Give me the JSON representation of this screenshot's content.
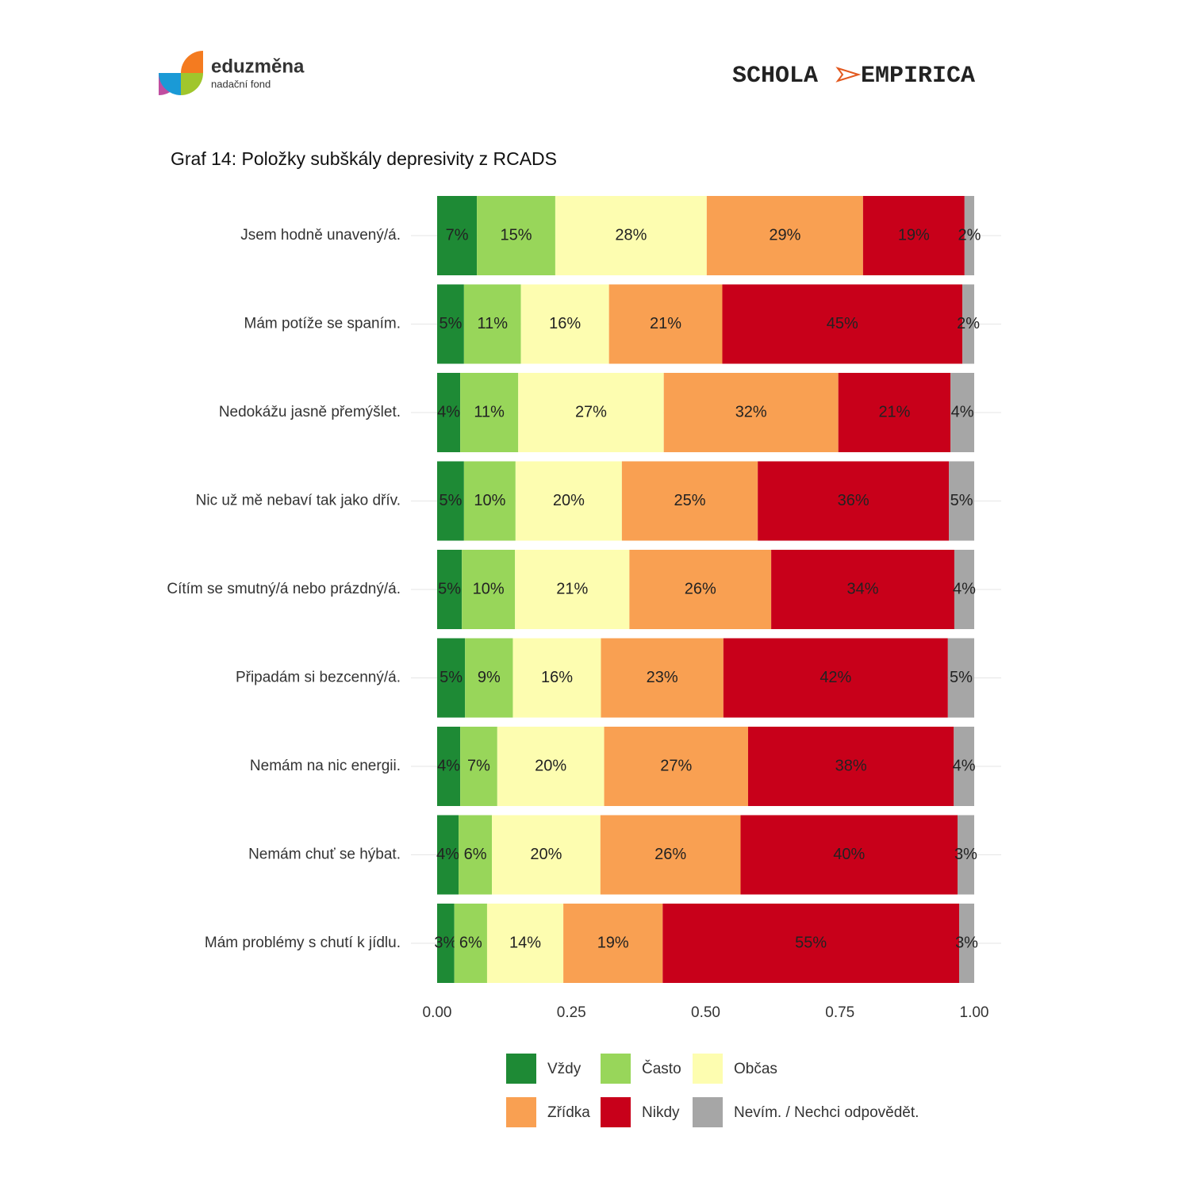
{
  "logos": {
    "left_name": "eduzměna",
    "left_sub": "nadační fond",
    "right_a": "SCHOLA",
    "right_b": "EMPIRICA"
  },
  "chart_data": {
    "type": "stacked_barh",
    "title": "Graf 14: Položky subškály depresivity z RCADS",
    "categories": [
      "Jsem hodně unavený/á.",
      "Mám potíže se spaním.",
      "Nedokážu jasně přemýšlet.",
      "Nic už mě nebaví tak jako dřív.",
      "Cítím se smutný/á nebo prázdný/á.",
      "Připadám si bezcenný/á.",
      "Nemám na nic energii.",
      "Nemám chuť se hýbat.",
      "Mám problémy s chutí k jídlu."
    ],
    "series": [
      {
        "name": "Vždy",
        "color": "#1e8a35",
        "values": [
          0.074,
          0.05,
          0.043,
          0.05,
          0.046,
          0.052,
          0.043,
          0.04,
          0.032
        ],
        "value_labels": [
          "7%",
          "5%",
          "4%",
          "5%",
          "5%",
          "5%",
          "4%",
          "4%",
          "3%"
        ]
      },
      {
        "name": "Často",
        "color": "#98d65a",
        "values": [
          0.146,
          0.106,
          0.108,
          0.096,
          0.099,
          0.089,
          0.069,
          0.062,
          0.061
        ],
        "value_labels": [
          "15%",
          "11%",
          "11%",
          "10%",
          "10%",
          "9%",
          "7%",
          "6%",
          "6%"
        ]
      },
      {
        "name": "Občas",
        "color": "#fdfdb0",
        "values": [
          0.282,
          0.164,
          0.271,
          0.198,
          0.213,
          0.164,
          0.199,
          0.202,
          0.142
        ],
        "value_labels": [
          "28%",
          "16%",
          "27%",
          "20%",
          "21%",
          "16%",
          "20%",
          "20%",
          "14%"
        ]
      },
      {
        "name": "Zřídka",
        "color": "#f9a052",
        "values": [
          0.291,
          0.211,
          0.325,
          0.253,
          0.264,
          0.228,
          0.268,
          0.261,
          0.185
        ],
        "value_labels": [
          "29%",
          "21%",
          "32%",
          "25%",
          "26%",
          "23%",
          "27%",
          "26%",
          "19%"
        ]
      },
      {
        "name": "Nikdy",
        "color": "#c8001a",
        "values": [
          0.189,
          0.447,
          0.209,
          0.356,
          0.341,
          0.418,
          0.383,
          0.404,
          0.552
        ],
        "value_labels": [
          "19%",
          "45%",
          "21%",
          "36%",
          "34%",
          "42%",
          "38%",
          "40%",
          "55%"
        ]
      },
      {
        "name": "Nevím. / Nechci odpovědět.",
        "color": "#a6a6a6",
        "values": [
          0.018,
          0.022,
          0.044,
          0.047,
          0.037,
          0.049,
          0.038,
          0.031,
          0.028
        ],
        "value_labels": [
          "2%",
          "2%",
          "4%",
          "5%",
          "4%",
          "5%",
          "4%",
          "3%",
          "3%"
        ]
      }
    ],
    "xlim": [
      0,
      1
    ],
    "xticks": [
      {
        "value": 0,
        "label": "0.00"
      },
      {
        "value": 0.25,
        "label": "0.25"
      },
      {
        "value": 0.5,
        "label": "0.50"
      },
      {
        "value": 0.75,
        "label": "0.75"
      },
      {
        "value": 1,
        "label": "1.00"
      }
    ]
  }
}
